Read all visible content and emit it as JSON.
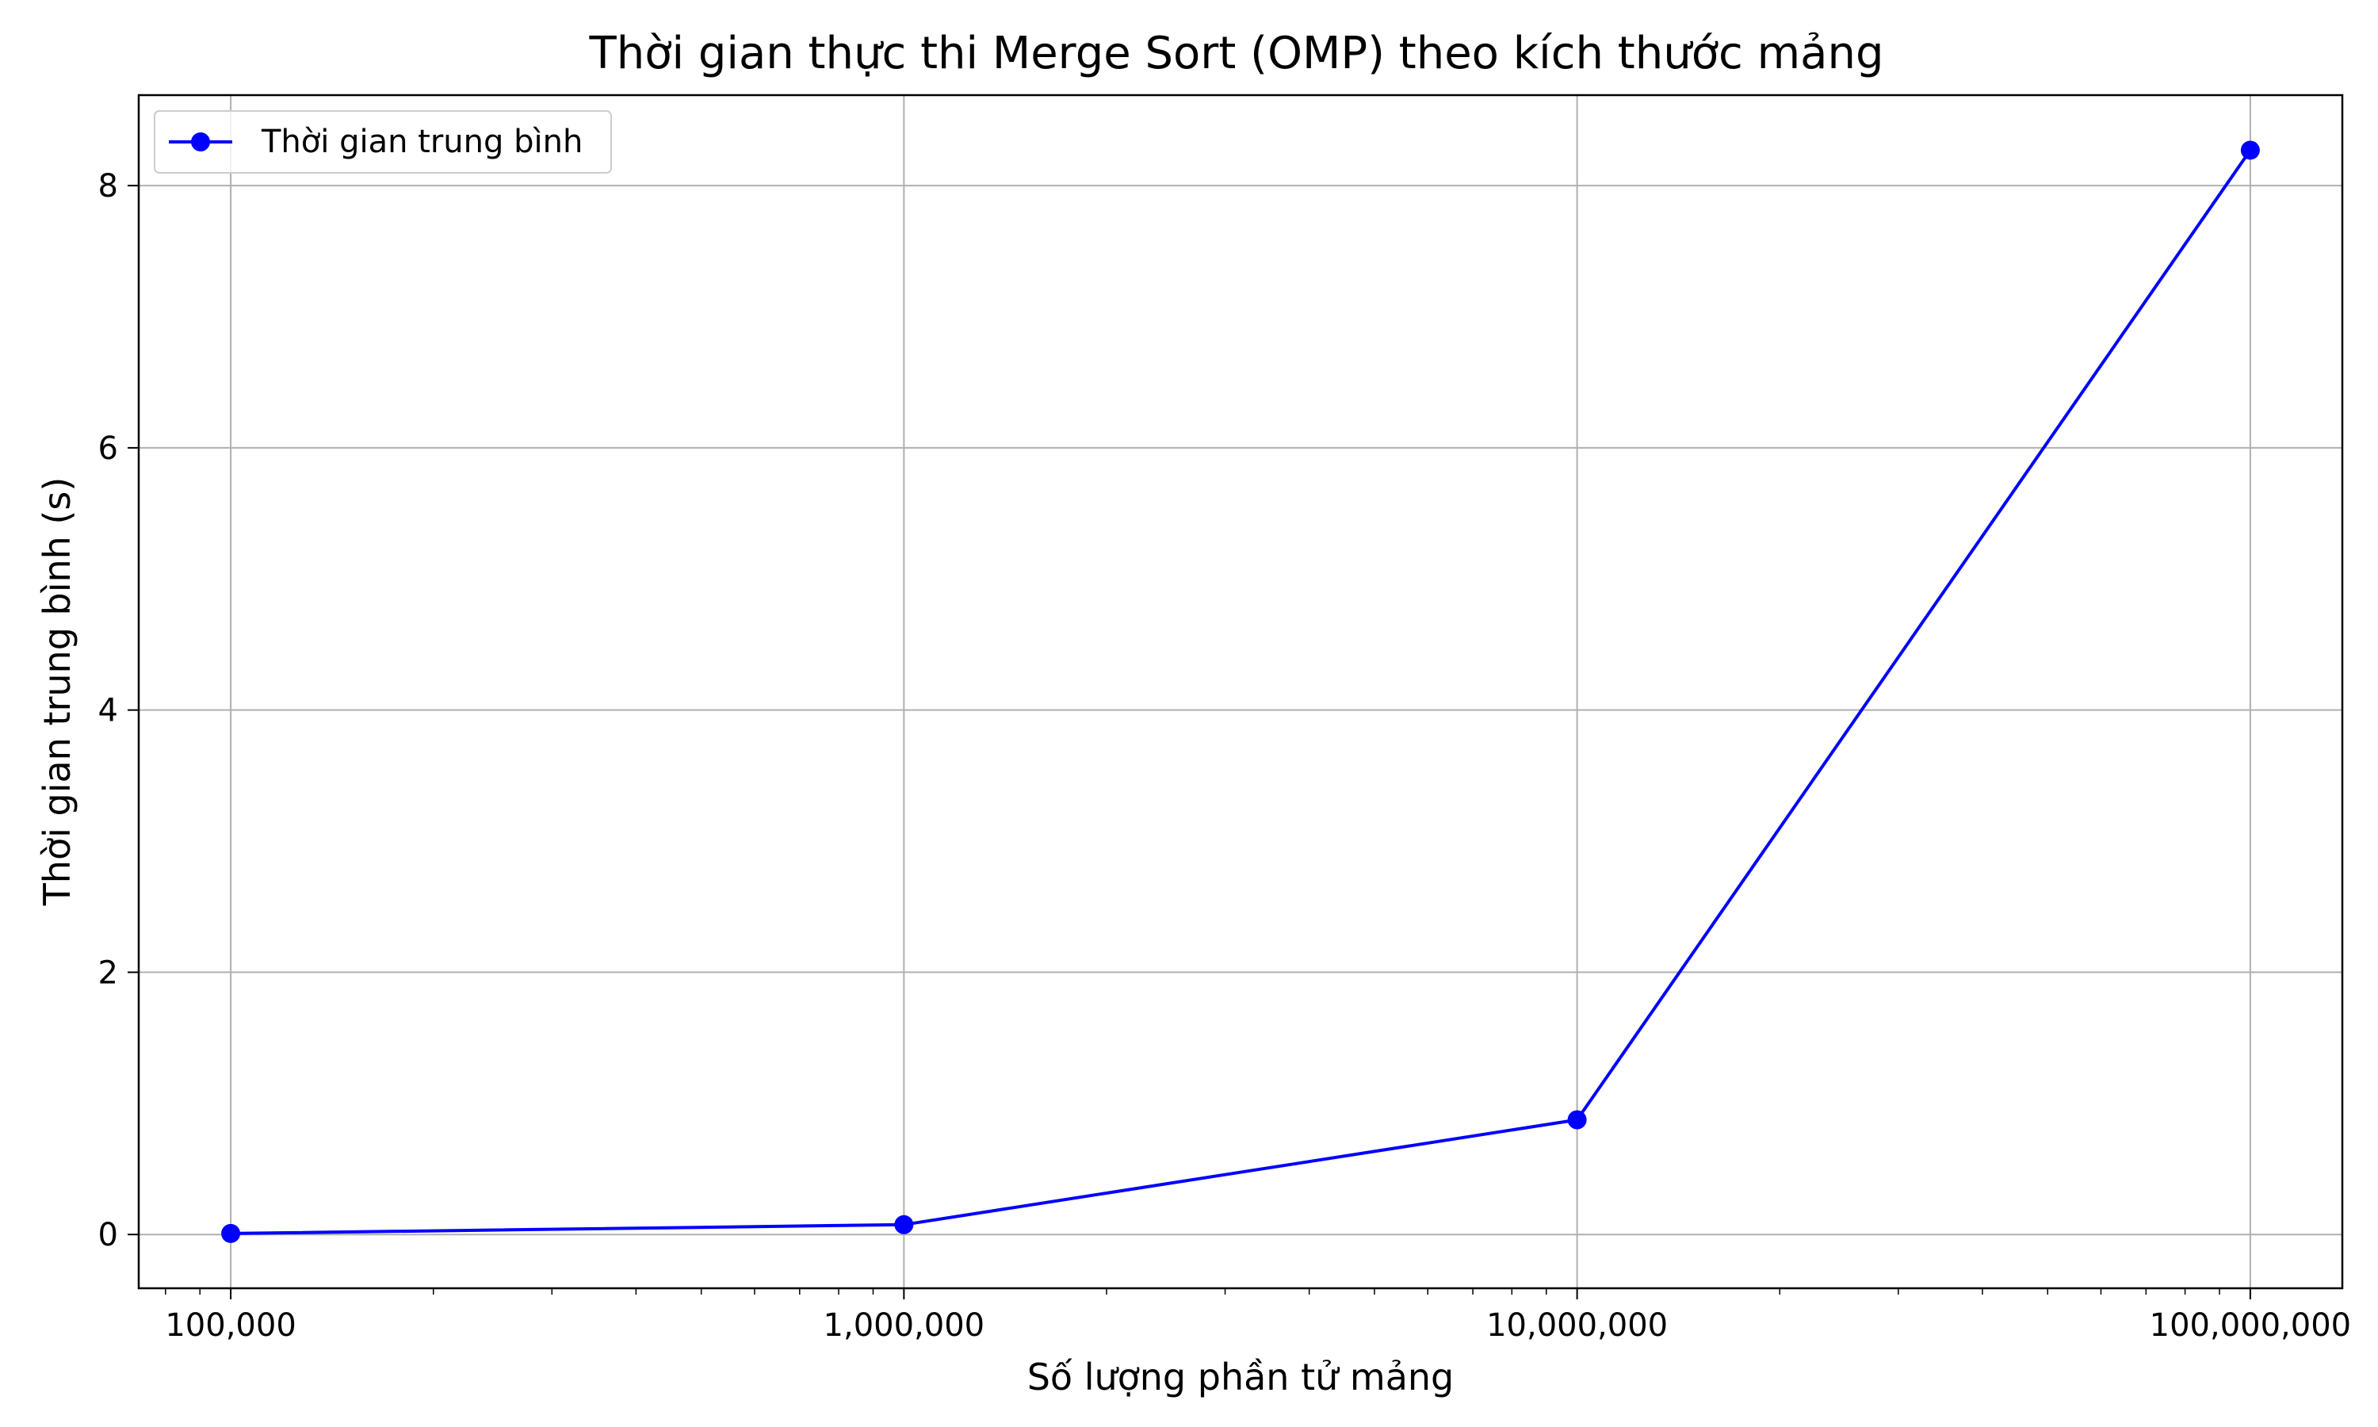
{
  "chart_data": {
    "type": "line",
    "title": "Thời gian thực thi Merge Sort (OMP) theo kích thước mảng",
    "xlabel": "Số lượng phần tử mảng",
    "ylabel": "Thời gian trung bình (s)",
    "x_scale": "log",
    "xlim": [
      73000,
      137000000
    ],
    "ylim": [
      -0.41,
      8.69
    ],
    "x_ticks": [
      100000,
      1000000,
      10000000,
      100000000
    ],
    "x_tick_labels": [
      "100,000",
      "1,000,000",
      "10,000,000",
      "100,000,000"
    ],
    "y_ticks": [
      0,
      2,
      4,
      6,
      8
    ],
    "y_tick_labels": [
      "0",
      "2",
      "4",
      "6",
      "8"
    ],
    "grid": true,
    "legend_position": "top-left",
    "series": [
      {
        "name": "Thời gian trung bình",
        "color": "#0000ff",
        "marker": "circle",
        "x": [
          100000,
          1000000,
          10000000,
          100000000
        ],
        "y": [
          0.008,
          0.075,
          0.875,
          8.27
        ]
      }
    ]
  }
}
